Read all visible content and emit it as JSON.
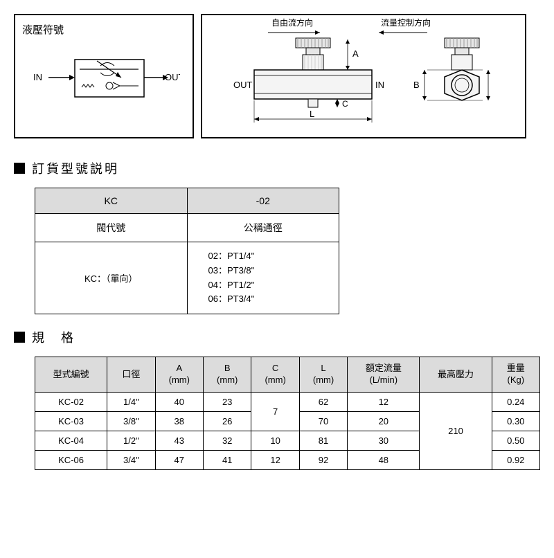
{
  "symbol": {
    "title": "液壓符號",
    "in": "IN",
    "out": "OUT"
  },
  "diagram": {
    "top_left": "自由流方向",
    "top_right": "流量控制方向",
    "in": "IN",
    "out": "OUT",
    "A": "A",
    "B": "B",
    "C": "C",
    "L": "L"
  },
  "sections": {
    "order": "訂貨型號説明",
    "spec": "規　格"
  },
  "order_table": {
    "col1_header": "KC",
    "col2_header": "-02",
    "col1_sub": "閥代號",
    "col2_sub": "公稱通徑",
    "col1_data": "KC：（單向）",
    "col2_data": [
      "02：PT1/4\"",
      "03：PT3/8\"",
      "04：PT1/2\"",
      "06：PT3/4\""
    ]
  },
  "spec_table": {
    "headers": [
      "型式編號",
      "口徑",
      "A\n(mm)",
      "B\n(mm)",
      "C\n(mm)",
      "L\n(mm)",
      "額定流量\n(L/min)",
      "最高壓力",
      "重量\n(Kg)"
    ],
    "rows": [
      [
        "KC-02",
        "1/4\"",
        "40",
        "23",
        "",
        "62",
        "12",
        "",
        "0.24"
      ],
      [
        "KC-03",
        "3/8\"",
        "38",
        "26",
        "",
        "70",
        "20",
        "",
        "0.30"
      ],
      [
        "KC-04",
        "1/2\"",
        "43",
        "32",
        "10",
        "81",
        "30",
        "",
        "0.50"
      ],
      [
        "KC-06",
        "3/4\"",
        "47",
        "41",
        "12",
        "92",
        "48",
        "",
        "0.92"
      ]
    ],
    "c_merged_01": "7",
    "pressure_merged": "210",
    "colors": {
      "header_bg": "#dcdcdc",
      "border": "#000000"
    }
  }
}
